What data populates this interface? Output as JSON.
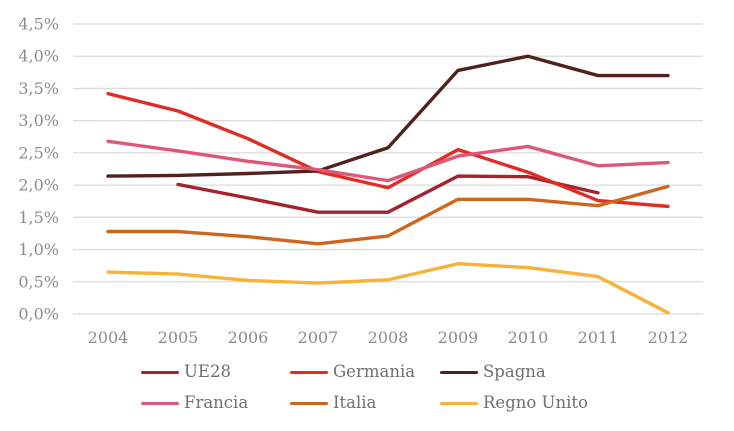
{
  "chart_data": {
    "type": "line",
    "title": "",
    "xlabel": "",
    "ylabel": "",
    "categories": [
      "2004",
      "2005",
      "2006",
      "2007",
      "2008",
      "2009",
      "2010",
      "2011",
      "2012"
    ],
    "y_ticks": [
      "0,0%",
      "0,5%",
      "1,0%",
      "1,5%",
      "2,0%",
      "2,5%",
      "3,0%",
      "3,5%",
      "4,0%",
      "4,5%"
    ],
    "ylim": [
      0,
      4.5
    ],
    "y_step": 0.5,
    "grid": "horizontal",
    "legend_position": "bottom",
    "series": [
      {
        "name": "UE28",
        "color": "#A3242D",
        "values": [
          null,
          2.01,
          1.8,
          1.58,
          1.58,
          2.14,
          2.13,
          1.88,
          null
        ]
      },
      {
        "name": "Germania",
        "color": "#DF2D26",
        "values": [
          3.42,
          3.15,
          2.72,
          2.21,
          1.96,
          2.55,
          2.2,
          1.76,
          1.67
        ]
      },
      {
        "name": "Spagna",
        "color": "#4F221D",
        "values": [
          2.14,
          2.15,
          2.18,
          2.22,
          2.58,
          3.78,
          4.0,
          3.7,
          3.7
        ]
      },
      {
        "name": "Francia",
        "color": "#DD5878",
        "values": [
          2.68,
          2.53,
          2.37,
          2.24,
          2.07,
          2.45,
          2.6,
          2.3,
          2.35
        ]
      },
      {
        "name": "Italia",
        "color": "#CE671E",
        "values": [
          1.28,
          1.28,
          1.2,
          1.09,
          1.21,
          1.78,
          1.78,
          1.68,
          1.98
        ]
      },
      {
        "name": "Regno Unito",
        "color": "#F6B33A",
        "values": [
          0.65,
          0.62,
          0.52,
          0.48,
          0.53,
          0.78,
          0.72,
          0.58,
          0.02
        ]
      }
    ],
    "colors": {
      "tick_label": "#8C8C8C",
      "grid_line": "#DBDBDB",
      "background": "#FFFFFF"
    }
  }
}
